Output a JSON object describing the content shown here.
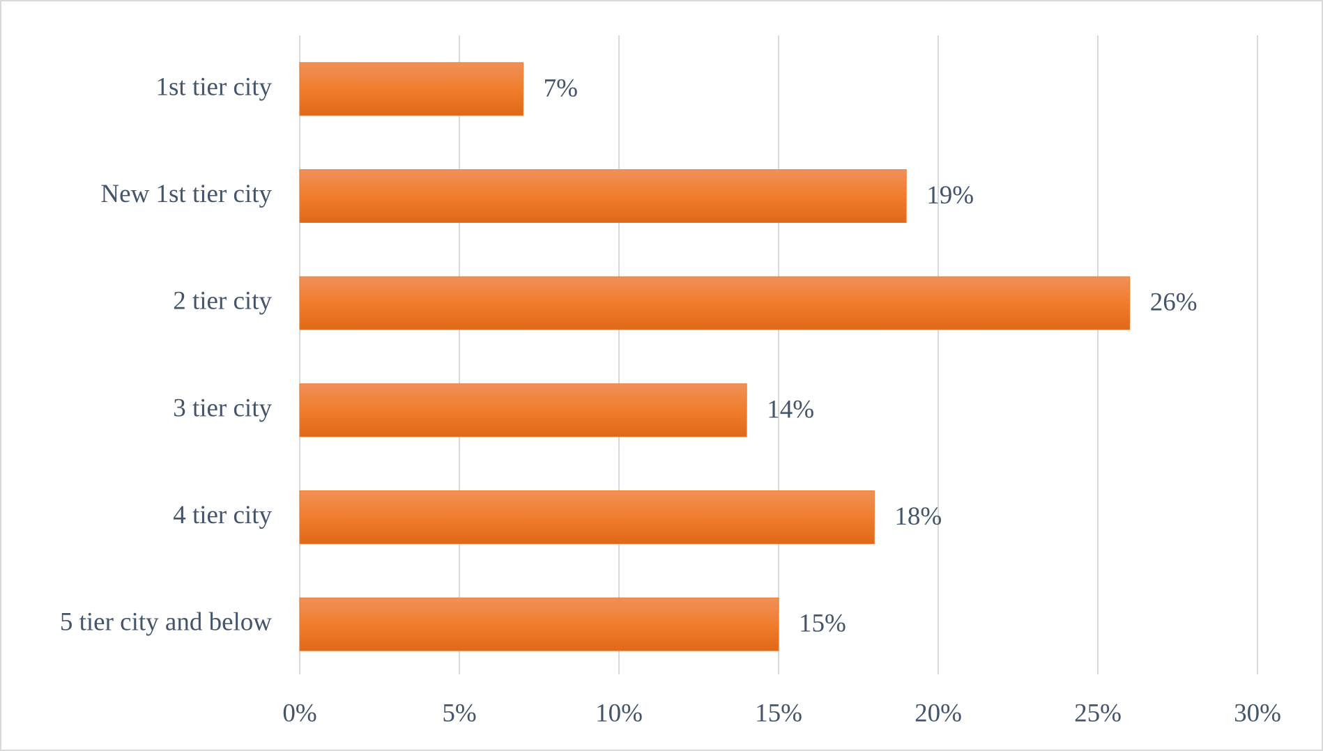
{
  "chart_data": {
    "type": "bar",
    "orientation": "horizontal",
    "categories": [
      "1st tier city",
      "New 1st tier city",
      "2 tier city",
      "3 tier city",
      "4 tier city",
      "5 tier city and below"
    ],
    "values": [
      7,
      19,
      26,
      14,
      18,
      15
    ],
    "value_labels": [
      "7%",
      "19%",
      "26%",
      "14%",
      "18%",
      "15%"
    ],
    "color": "#ed7d31",
    "xlim": [
      0,
      30
    ],
    "xticks": [
      {
        "value": 0,
        "label": "0%"
      },
      {
        "value": 5,
        "label": "5%"
      },
      {
        "value": 10,
        "label": "10%"
      },
      {
        "value": 15,
        "label": "15%"
      },
      {
        "value": 20,
        "label": "20%"
      },
      {
        "value": 25,
        "label": "25%"
      },
      {
        "value": 30,
        "label": "30%"
      }
    ],
    "grid": true
  }
}
